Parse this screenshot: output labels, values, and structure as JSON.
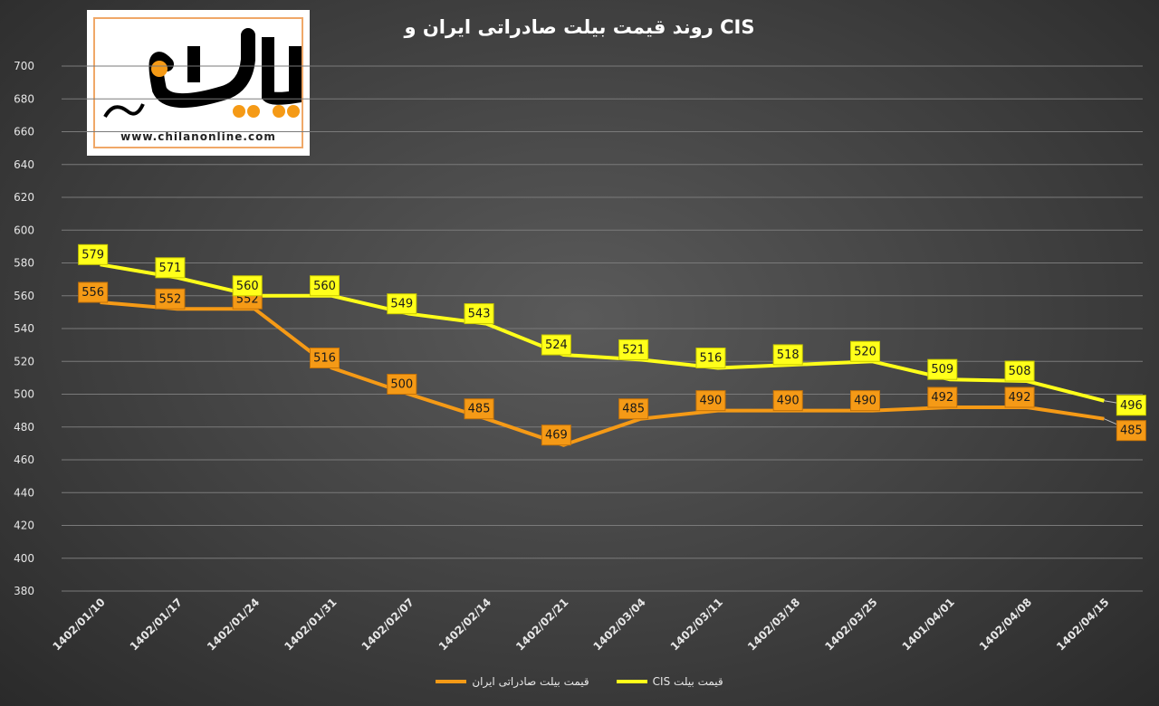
{
  "chart_data": {
    "type": "line",
    "title": "روند قیمت بیلت صادراتی ایران و CIS",
    "categories": [
      "1402/01/10",
      "1402/01/17",
      "1402/01/24",
      "1402/01/31",
      "1402/02/07",
      "1402/02/14",
      "1402/02/21",
      "1402/03/04",
      "1402/03/11",
      "1402/03/18",
      "1402/03/25",
      "1401/04/01",
      "1402/04/08",
      "1402/04/15"
    ],
    "ylim": [
      380,
      700
    ],
    "yticks": [
      380,
      400,
      420,
      440,
      460,
      480,
      500,
      520,
      540,
      560,
      580,
      600,
      620,
      640,
      660,
      680,
      700
    ],
    "grid": true,
    "legend_position": "bottom",
    "series": [
      {
        "name": "قیمت بیلت صادراتی ایران",
        "color": "#f59a16",
        "values": [
          556,
          552,
          552,
          516,
          500,
          485,
          469,
          485,
          490,
          490,
          490,
          492,
          492,
          485
        ]
      },
      {
        "name": "قیمت بیلت CIS",
        "color": "#ffff1a",
        "values": [
          579,
          571,
          560,
          560,
          549,
          543,
          524,
          521,
          516,
          518,
          520,
          509,
          508,
          496
        ]
      }
    ]
  },
  "logo": {
    "url_text": "www.chilanonline.com",
    "colors": {
      "primary": "#000000",
      "accent": "#f59a16"
    }
  }
}
